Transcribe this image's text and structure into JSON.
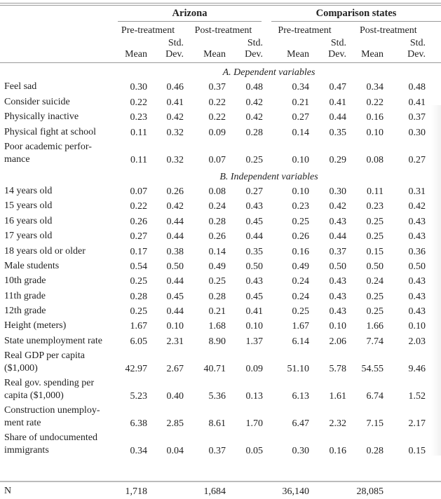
{
  "header": {
    "groups": [
      "Arizona",
      "Comparison states"
    ],
    "periods": [
      "Pre-treatment",
      "Post-treatment",
      "Pre-treatment",
      "Post-treatment"
    ],
    "std_top": "Std.",
    "mean_label": "Mean",
    "sd_label": "Dev."
  },
  "sections": [
    {
      "title": "A. Dependent variables",
      "rows": [
        {
          "label": [
            "Feel sad"
          ],
          "values": [
            "0.30",
            "0.46",
            "0.37",
            "0.48",
            "0.34",
            "0.47",
            "0.34",
            "0.48"
          ]
        },
        {
          "label": [
            "Consider suicide"
          ],
          "values": [
            "0.22",
            "0.41",
            "0.22",
            "0.42",
            "0.21",
            "0.41",
            "0.22",
            "0.41"
          ]
        },
        {
          "label": [
            "Physically inactive"
          ],
          "values": [
            "0.23",
            "0.42",
            "0.22",
            "0.42",
            "0.27",
            "0.44",
            "0.16",
            "0.37"
          ]
        },
        {
          "label": [
            "Physical fight at school"
          ],
          "values": [
            "0.11",
            "0.32",
            "0.09",
            "0.28",
            "0.14",
            "0.35",
            "0.10",
            "0.30"
          ]
        },
        {
          "label": [
            "Poor academic perfor-",
            "mance"
          ],
          "values": [
            "0.11",
            "0.32",
            "0.07",
            "0.25",
            "0.10",
            "0.29",
            "0.08",
            "0.27"
          ]
        }
      ]
    },
    {
      "title": "B. Independent variables",
      "rows": [
        {
          "label": [
            "14 years old"
          ],
          "values": [
            "0.07",
            "0.26",
            "0.08",
            "0.27",
            "0.10",
            "0.30",
            "0.11",
            "0.31"
          ]
        },
        {
          "label": [
            "15 years old"
          ],
          "values": [
            "0.22",
            "0.42",
            "0.24",
            "0.43",
            "0.23",
            "0.42",
            "0.23",
            "0.42"
          ]
        },
        {
          "label": [
            "16 years old"
          ],
          "values": [
            "0.26",
            "0.44",
            "0.28",
            "0.45",
            "0.25",
            "0.43",
            "0.25",
            "0.43"
          ]
        },
        {
          "label": [
            "17 years old"
          ],
          "values": [
            "0.27",
            "0.44",
            "0.26",
            "0.44",
            "0.26",
            "0.44",
            "0.25",
            "0.43"
          ]
        },
        {
          "label": [
            "18 years old or older"
          ],
          "values": [
            "0.17",
            "0.38",
            "0.14",
            "0.35",
            "0.16",
            "0.37",
            "0.15",
            "0.36"
          ]
        },
        {
          "label": [
            "Male students"
          ],
          "values": [
            "0.54",
            "0.50",
            "0.49",
            "0.50",
            "0.49",
            "0.50",
            "0.50",
            "0.50"
          ]
        },
        {
          "label": [
            "10th grade"
          ],
          "values": [
            "0.25",
            "0.44",
            "0.25",
            "0.43",
            "0.24",
            "0.43",
            "0.24",
            "0.43"
          ]
        },
        {
          "label": [
            "11th grade"
          ],
          "values": [
            "0.28",
            "0.45",
            "0.28",
            "0.45",
            "0.24",
            "0.43",
            "0.25",
            "0.43"
          ]
        },
        {
          "label": [
            "12th grade"
          ],
          "values": [
            "0.25",
            "0.44",
            "0.21",
            "0.41",
            "0.25",
            "0.43",
            "0.25",
            "0.43"
          ]
        },
        {
          "label": [
            "Height (meters)"
          ],
          "values": [
            "1.67",
            "0.10",
            "1.68",
            "0.10",
            "1.67",
            "0.10",
            "1.66",
            "0.10"
          ]
        },
        {
          "label": [
            "State unemployment rate"
          ],
          "values": [
            "6.05",
            "2.31",
            "8.90",
            "1.37",
            "6.14",
            "2.06",
            "7.74",
            "2.03"
          ]
        },
        {
          "label": [
            "Real GDP per capita",
            "($1,000)"
          ],
          "values": [
            "42.97",
            "2.67",
            "40.71",
            "0.09",
            "51.10",
            "5.78",
            "54.55",
            "9.46"
          ]
        },
        {
          "label": [
            "Real gov. spending per",
            "capita ($1,000)"
          ],
          "values": [
            "5.23",
            "0.40",
            "5.36",
            "0.13",
            "6.13",
            "1.61",
            "6.74",
            "1.52"
          ]
        },
        {
          "label": [
            "Construction unemploy-",
            "ment rate"
          ],
          "values": [
            "6.38",
            "2.85",
            "8.61",
            "1.70",
            "6.47",
            "2.32",
            "7.15",
            "2.17"
          ]
        },
        {
          "label": [
            "Share of undocumented",
            "immigrants"
          ],
          "values": [
            "0.34",
            "0.04",
            "0.37",
            "0.05",
            "0.30",
            "0.16",
            "0.28",
            "0.15"
          ]
        }
      ]
    }
  ],
  "n_row": {
    "label": "N",
    "values": [
      "1,718",
      "",
      "1,684",
      "",
      "36,140",
      "",
      "28,085",
      ""
    ]
  }
}
